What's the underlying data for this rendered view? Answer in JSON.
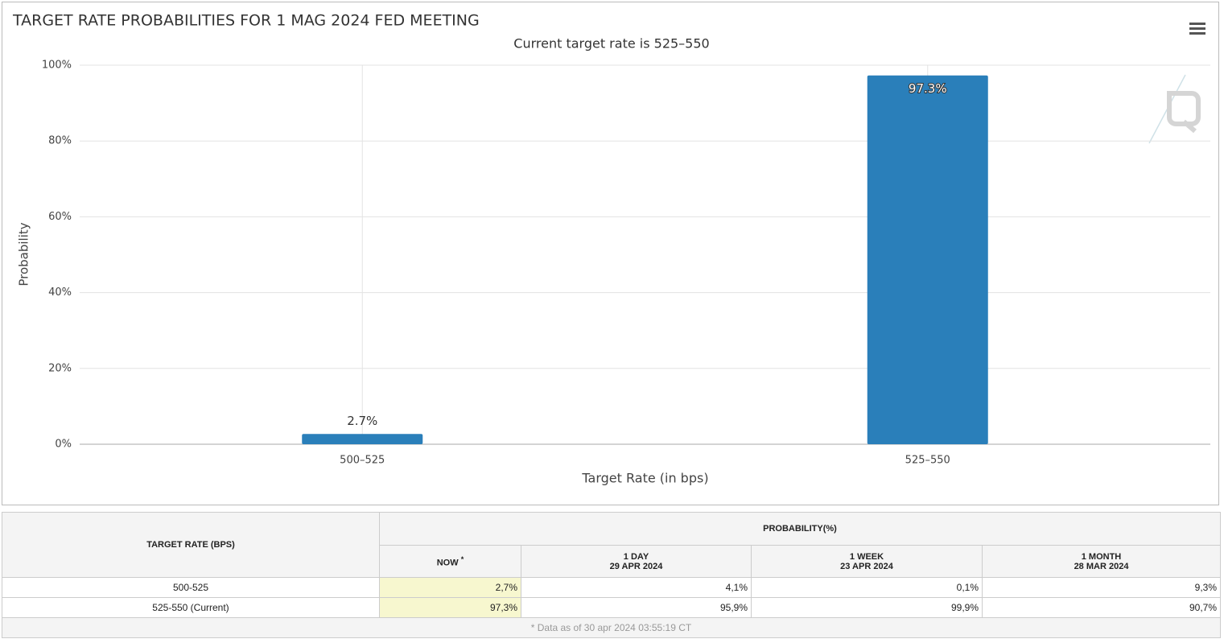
{
  "chart_data": {
    "type": "bar",
    "title": "TARGET RATE PROBABILITIES FOR 1 MAG 2024 FED MEETING",
    "subtitle": "Current target rate is 525–550",
    "y_label": "Probability",
    "x_label": "Target Rate (in bps)",
    "categories": [
      "500–525",
      "525–550"
    ],
    "values": [
      2.7,
      97.3
    ],
    "value_labels": [
      "2.7%",
      "97.3%"
    ],
    "color": "#2a7fba",
    "ylim": [
      0,
      100
    ],
    "yticks": [
      {
        "value": 0,
        "label": "0%"
      },
      {
        "value": 20,
        "label": "20%"
      },
      {
        "value": 40,
        "label": "40%"
      },
      {
        "value": 60,
        "label": "60%"
      },
      {
        "value": 80,
        "label": "80%"
      },
      {
        "value": 100,
        "label": "100%"
      }
    ],
    "grid": true
  },
  "table": {
    "rate_header": "TARGET RATE (BPS)",
    "prob_header": "PROBABILITY(%)",
    "columns": [
      {
        "label": "NOW",
        "note": "*"
      },
      {
        "label": "1 DAY",
        "date": "29 APR 2024"
      },
      {
        "label": "1 WEEK",
        "date": "23 APR 2024"
      },
      {
        "label": "1 MONTH",
        "date": "28 MAR 2024"
      }
    ],
    "rows": [
      [
        "500-525",
        "2,7%",
        "4,1%",
        "0,1%",
        "9,3%"
      ],
      [
        "525-550 (Current)",
        "97,3%",
        "95,9%",
        "99,9%",
        "90,7%"
      ]
    ],
    "footnote": "* Data as of 30 apr 2024 03:55:19 CT"
  }
}
